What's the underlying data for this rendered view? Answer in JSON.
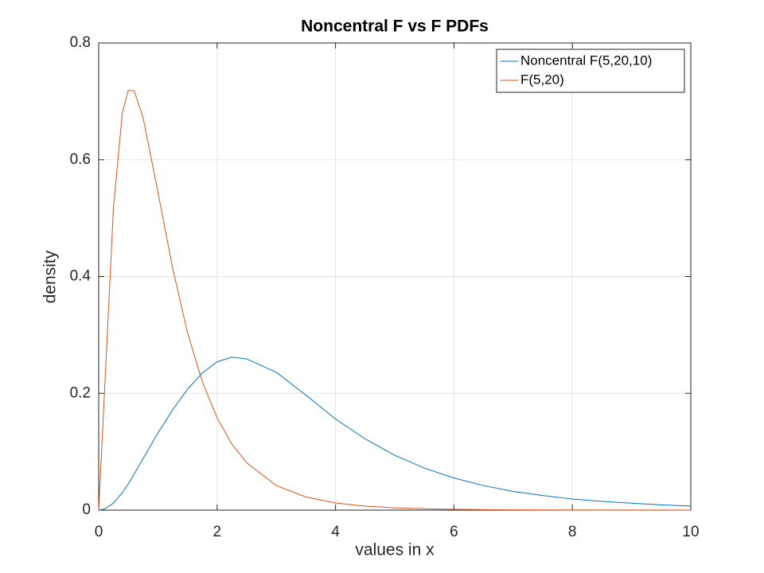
{
  "chart_data": {
    "type": "line",
    "title": "Noncentral F vs F PDFs",
    "xlabel": "values in x",
    "ylabel": "density",
    "x": [
      0,
      0.1,
      0.25,
      0.4,
      0.5,
      0.6,
      0.75,
      1,
      1.25,
      1.5,
      1.75,
      2,
      2.25,
      2.5,
      3,
      3.5,
      4,
      4.5,
      5,
      5.5,
      6,
      6.5,
      7,
      7.5,
      8,
      8.5,
      9,
      9.5,
      10
    ],
    "series": [
      {
        "name": "Noncentral F(5,20,10)",
        "color": "#0072bd",
        "values": [
          0,
          0.002,
          0.012,
          0.03,
          0.045,
          0.062,
          0.088,
          0.132,
          0.172,
          0.207,
          0.235,
          0.254,
          0.262,
          0.259,
          0.236,
          0.197,
          0.156,
          0.122,
          0.094,
          0.072,
          0.055,
          0.042,
          0.032,
          0.025,
          0.019,
          0.015,
          0.012,
          0.009,
          0.007
        ]
      },
      {
        "name": "F(5,20)",
        "color": "#d95319",
        "values": [
          0,
          0.206,
          0.519,
          0.681,
          0.719,
          0.718,
          0.672,
          0.545,
          0.414,
          0.304,
          0.22,
          0.158,
          0.113,
          0.081,
          0.042,
          0.0225,
          0.0122,
          0.0068,
          0.0039,
          0.0023,
          0.0014,
          0.0008,
          0.0005,
          0.0003,
          0.0002,
          0.0001,
          0.0001,
          0.0001,
          0
        ]
      }
    ],
    "xlim": [
      0,
      10
    ],
    "xticks": [
      0,
      2,
      4,
      6,
      8,
      10
    ],
    "ylim": [
      0,
      0.8
    ],
    "yticks": [
      0,
      0.2,
      0.4,
      0.6,
      0.8
    ],
    "grid": true,
    "legend": "northeast"
  }
}
